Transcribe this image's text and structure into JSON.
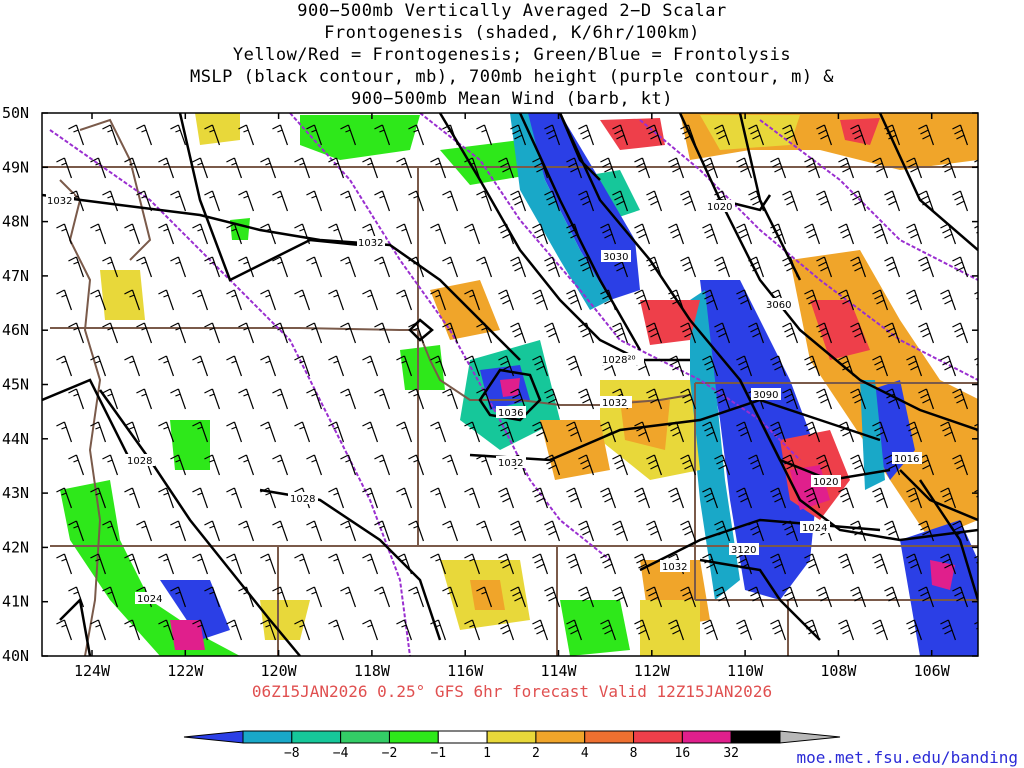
{
  "title": {
    "line1": "900−500mb Vertically Averaged 2−D Scalar",
    "line2": "Frontogenesis (shaded, K/6hr/100km)",
    "line3": "Yellow/Red = Frontogenesis;  Green/Blue = Frontolysis",
    "line4": "MSLP (black contour, mb), 700mb height (purple contour, m) &",
    "line5": "900−500mb Mean Wind (barb, kt)"
  },
  "subtitle": "06Z15JAN2026 0.25° GFS 6hr forecast Valid 12Z15JAN2026",
  "credit": "moe.met.fsu.edu/banding",
  "map": {
    "lat_labels": [
      "50N",
      "49N",
      "48N",
      "47N",
      "46N",
      "45N",
      "44N",
      "43N",
      "42N",
      "41N",
      "40N"
    ],
    "lon_labels": [
      "124W",
      "122W",
      "120W",
      "118W",
      "116W",
      "114W",
      "112W",
      "110W",
      "108W",
      "106W"
    ],
    "mslp_labels": [
      "1032",
      "1032",
      "1020",
      "1028",
      "1028",
      "1024",
      "1032",
      "1028²⁰",
      "1036",
      "1032",
      "1032",
      "1020",
      "1016",
      "1024"
    ],
    "height_labels": [
      "3030",
      "3060",
      "3090",
      "3120"
    ],
    "colors": {
      "mslp": "#000000",
      "height": "#9a2fd0",
      "border": "#7a5a4a",
      "barb": "#000000"
    }
  },
  "colorbar": {
    "labels": [
      "−8",
      "−4",
      "−2",
      "−1",
      "1",
      "2",
      "4",
      "8",
      "16",
      "32"
    ],
    "colors": [
      "#2b3fe6",
      "#19a8c8",
      "#16c79a",
      "#33cc66",
      "#2ee81a",
      "#ffffff",
      "#e8d83a",
      "#f0a52a",
      "#ee7030",
      "#ee3f4a",
      "#e01f8c",
      "#000000",
      "#b8b8b8"
    ]
  }
}
